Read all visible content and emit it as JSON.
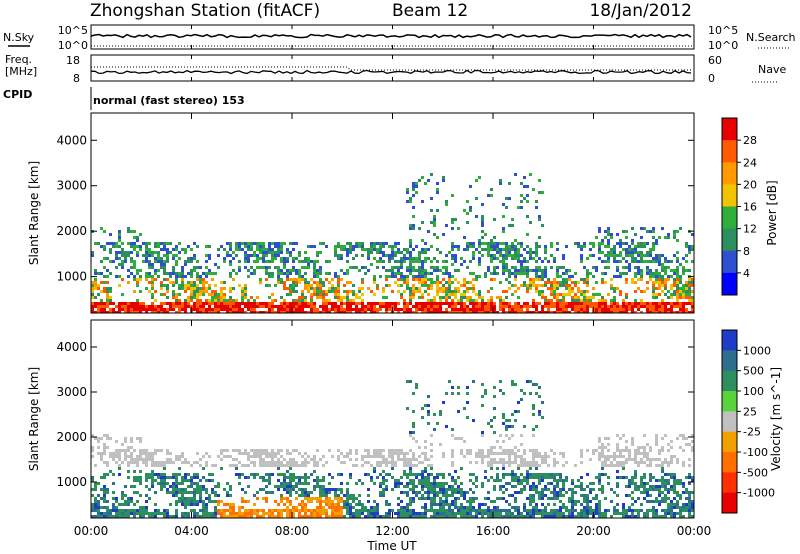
{
  "header": {
    "title": "Zhongshan Station (fitACF)",
    "beam": "Beam 12",
    "date": "18/Jan/2012"
  },
  "strips": {
    "nsky": {
      "label": "N.Sky",
      "ytick_top": "10^5",
      "ytick_bottom": "10^0",
      "right_label": "N.Search",
      "right_top": "10^5",
      "right_bottom": "10^0"
    },
    "freq": {
      "label_line1": "Freq.",
      "label_line2": "[MHz]",
      "ytick_top": "18",
      "ytick_bottom": "8",
      "right_label": "Nave",
      "right_top": "60",
      "right_bottom": "0"
    },
    "cpid": {
      "label": "CPID",
      "text": "normal (fast stereo) 153"
    }
  },
  "chart_data": [
    {
      "type": "heatmap",
      "name": "power-panel",
      "ylabel": "Slant Range [km]",
      "xlabel": "",
      "xlim": [
        0,
        24
      ],
      "ylim": [
        200,
        4600
      ],
      "yticks": [
        1000,
        2000,
        3000,
        4000
      ],
      "colorbar": {
        "label": "Power [dB]",
        "ticks": [
          "28",
          "24",
          "20",
          "16",
          "12",
          "8",
          "4"
        ],
        "colors": [
          "#e60000",
          "#ff5a00",
          "#ff9a00",
          "#f2c300",
          "#2fae3a",
          "#2e8f5e",
          "#2e4fd0",
          "#0000ff"
        ]
      },
      "features": [
        {
          "desc": "dense scatter band",
          "x": [
            0,
            24
          ],
          "range_km": [
            250,
            1800
          ]
        },
        {
          "desc": "strong near-range band",
          "x": [
            0,
            24
          ],
          "range_km": [
            250,
            450
          ]
        },
        {
          "desc": "high range scatter",
          "x": [
            12.5,
            18
          ],
          "range_km": [
            1800,
            3300
          ]
        }
      ]
    },
    {
      "type": "heatmap",
      "name": "velocity-panel",
      "ylabel": "Slant Range [km]",
      "xlabel": "Time UT",
      "xlim": [
        0,
        24
      ],
      "ylim": [
        200,
        4600
      ],
      "yticks": [
        1000,
        2000,
        3000,
        4000
      ],
      "xticks": [
        "00:00",
        "04:00",
        "08:00",
        "12:00",
        "16:00",
        "20:00",
        "00:00"
      ],
      "colorbar": {
        "label": "Velocity [m s^-1]",
        "ticks": [
          "1000",
          "500",
          "100",
          "25",
          "-25",
          "-100",
          "-500",
          "-1000"
        ],
        "colors": [
          "#1e3cc8",
          "#2d6e8e",
          "#2e8f5e",
          "#5ad23c",
          "#c0c0c0",
          "#f2a000",
          "#ff7000",
          "#ff3000",
          "#e60000"
        ]
      }
    }
  ]
}
